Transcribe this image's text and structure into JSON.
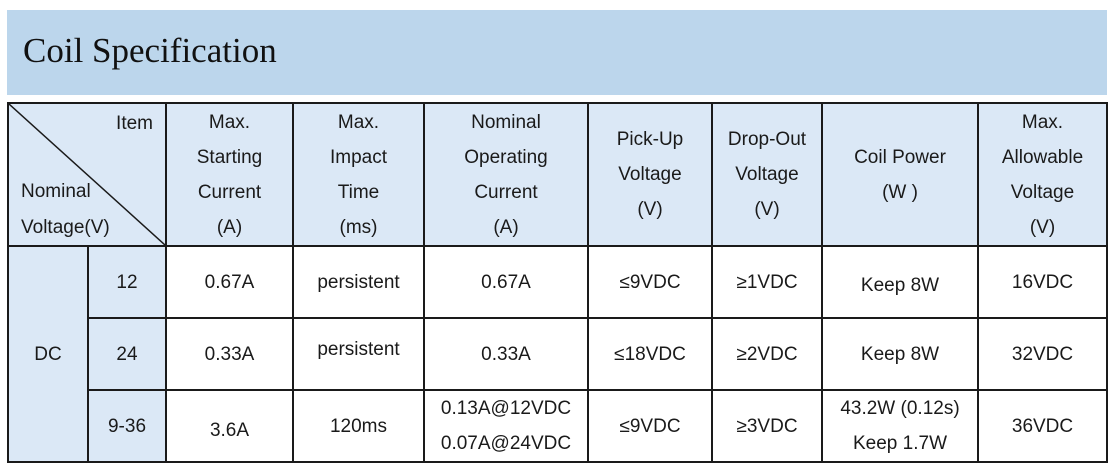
{
  "title": "Coil Specification",
  "header": {
    "corner_item": "Item",
    "corner_nominal": "Nominal",
    "corner_voltage": "Voltage(V)",
    "max_starting_current": [
      "Max.",
      "Starting",
      "Current",
      "(A)"
    ],
    "max_impact_time": [
      "Max.",
      "Impact",
      "Time",
      "(ms)"
    ],
    "nominal_operating_current": [
      "Nominal",
      "Operating",
      "Current",
      "(A)"
    ],
    "pickup_voltage": [
      "Pick-Up",
      "Voltage",
      "(V)"
    ],
    "dropout_voltage": [
      "Drop-Out",
      "Voltage",
      "(V)"
    ],
    "coil_power": [
      "Coil Power",
      "(W )"
    ],
    "max_allowable_voltage": [
      "Max.",
      "Allowable",
      "Voltage",
      "(V)"
    ]
  },
  "group_label": "DC",
  "rows": [
    {
      "nominal": "12",
      "starting_current": "0.67A",
      "impact_time": "persistent",
      "operating_current": [
        "0.67A"
      ],
      "pickup": "≤9VDC",
      "dropout": "≥1VDC",
      "coil_power": [
        "Keep 8W"
      ],
      "max_allowable": "16VDC"
    },
    {
      "nominal": "24",
      "starting_current": "0.33A",
      "impact_time": "persistent",
      "operating_current": [
        "0.33A"
      ],
      "pickup": "≤18VDC",
      "dropout": "≥2VDC",
      "coil_power": [
        "Keep 8W"
      ],
      "max_allowable": "32VDC"
    },
    {
      "nominal": "9-36",
      "starting_current": "3.6A",
      "impact_time": "120ms",
      "operating_current": [
        "0.13A@12VDC",
        "0.07A@24VDC"
      ],
      "pickup": "≤9VDC",
      "dropout": "≥3VDC",
      "coil_power": [
        "43.2W (0.12s)",
        "Keep 1.7W"
      ],
      "max_allowable": "36VDC"
    }
  ],
  "colors": {
    "title_bg": "#bcd6ec",
    "header_bg": "#dbe8f6",
    "border": "#1a1a1a"
  }
}
